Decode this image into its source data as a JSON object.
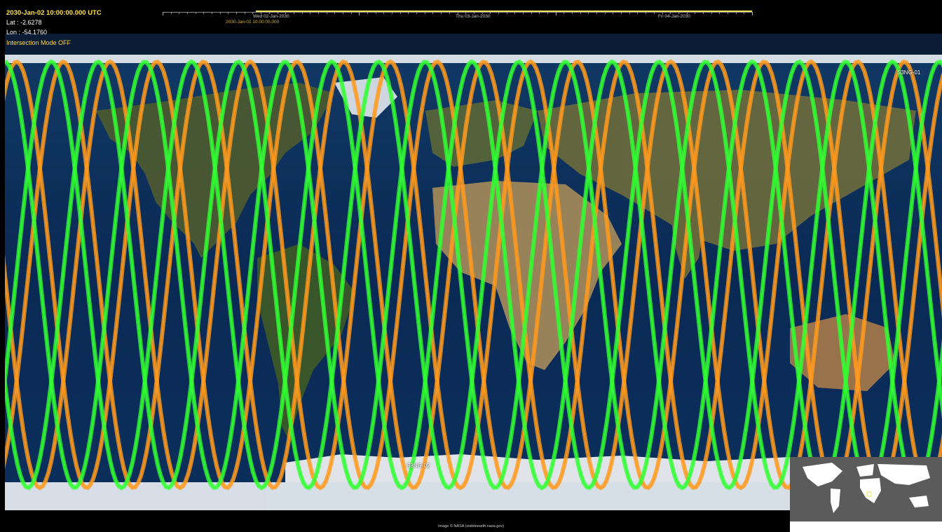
{
  "hud": {
    "utc_time": "2030-Jan-02 10:00:00.000 UTC",
    "lat": "Lat : -2.6278",
    "lon": "Lon : -54.1760",
    "mode": "Intersection Mode OFF"
  },
  "timeline": {
    "days": [
      "Wed 02-Jan-2030",
      "Thu 03-Jan-2030",
      "Fri 04-Jan-2030"
    ],
    "cursor_time": "2030-Jan-02 10:00:00.000",
    "range_color": "#f5e15a"
  },
  "satellites": [
    {
      "name": "S3NG-01",
      "color": "#ff9a1f"
    },
    {
      "name": "S3NG-02",
      "color": "#33ff33"
    }
  ],
  "map": {
    "ocean_color": "#0c2d5a",
    "land_color": "#8a7a4a"
  },
  "credit": "Image © NASA (visibleearth.nasa.gov)",
  "minimap": {
    "background": "#5a5a5a",
    "marker_color": "#f5e15a"
  }
}
